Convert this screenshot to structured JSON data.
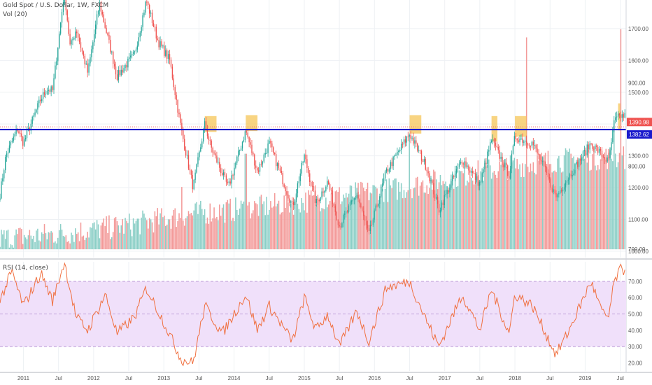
{
  "header": {
    "title": "Gold Spot / U.S. Dollar, 1W, FXCM",
    "volume_label": "Vol (20)",
    "rsi_label": "RSI (14, close)"
  },
  "colors": {
    "up": "#26a69a",
    "down": "#ef5350",
    "volume_up": "#8ccfc7",
    "volume_down": "#f39a99",
    "resistance_line": "#1a1acc",
    "price_tag": "#ef5350",
    "level_tag": "#1a1acc",
    "highlight_box": "#f5c24d",
    "rsi_line": "#f07040",
    "rsi_band": "#f0e0fa"
  },
  "chart_data": [
    {
      "type": "candlestick",
      "title": "Gold Spot / U.S. Dollar, 1W, FXCM",
      "x_ticks": [
        "2011",
        "Jul",
        "2012",
        "Jul",
        "2013",
        "Jul",
        "2014",
        "Jul",
        "2015",
        "Jul",
        "2016",
        "Jul",
        "2017",
        "Jul",
        "2018",
        "Jul",
        "2019",
        "Jul"
      ],
      "x_range": [
        "2010-09",
        "2019-08"
      ],
      "ylim": [
        980,
        1790
      ],
      "y_ticks": [
        1000,
        1100,
        1200,
        1300,
        1400,
        1500,
        1600,
        1700
      ],
      "y_tick_labels": [
        "1000.00",
        "1100.00",
        "1200.00",
        "1300.00",
        "1400.00",
        "1500.00",
        "1600.00",
        "1700.00"
      ],
      "grid": true,
      "close_path": [
        {
          "date": "2010-09",
          "close": 1180
        },
        {
          "date": "2010-10",
          "close": 1300
        },
        {
          "date": "2010-12",
          "close": 1385
        },
        {
          "date": "2011-01",
          "close": 1340
        },
        {
          "date": "2011-04",
          "close": 1480
        },
        {
          "date": "2011-05",
          "close": 1510
        },
        {
          "date": "2011-06",
          "close": 1505
        },
        {
          "date": "2011-08",
          "close": 1820
        },
        {
          "date": "2011-09",
          "close": 1640
        },
        {
          "date": "2011-10",
          "close": 1700
        },
        {
          "date": "2011-12",
          "close": 1560
        },
        {
          "date": "2012-02",
          "close": 1780
        },
        {
          "date": "2012-05",
          "close": 1550
        },
        {
          "date": "2012-08",
          "close": 1620
        },
        {
          "date": "2012-10",
          "close": 1790
        },
        {
          "date": "2012-12",
          "close": 1660
        },
        {
          "date": "2013-02",
          "close": 1600
        },
        {
          "date": "2013-04",
          "close": 1380
        },
        {
          "date": "2013-06",
          "close": 1200
        },
        {
          "date": "2013-08",
          "close": 1400
        },
        {
          "date": "2013-09",
          "close": 1330
        },
        {
          "date": "2013-12",
          "close": 1200
        },
        {
          "date": "2014-03",
          "close": 1380
        },
        {
          "date": "2014-05",
          "close": 1250
        },
        {
          "date": "2014-07",
          "close": 1340
        },
        {
          "date": "2014-11",
          "close": 1140
        },
        {
          "date": "2015-01",
          "close": 1300
        },
        {
          "date": "2015-03",
          "close": 1150
        },
        {
          "date": "2015-05",
          "close": 1220
        },
        {
          "date": "2015-07",
          "close": 1080
        },
        {
          "date": "2015-10",
          "close": 1180
        },
        {
          "date": "2015-12",
          "close": 1050
        },
        {
          "date": "2016-03",
          "close": 1250
        },
        {
          "date": "2016-07",
          "close": 1370
        },
        {
          "date": "2016-10",
          "close": 1260
        },
        {
          "date": "2016-12",
          "close": 1130
        },
        {
          "date": "2017-04",
          "close": 1290
        },
        {
          "date": "2017-07",
          "close": 1210
        },
        {
          "date": "2017-09",
          "close": 1350
        },
        {
          "date": "2017-12",
          "close": 1240
        },
        {
          "date": "2018-01",
          "close": 1360
        },
        {
          "date": "2018-04",
          "close": 1340
        },
        {
          "date": "2018-06",
          "close": 1260
        },
        {
          "date": "2018-08",
          "close": 1170
        },
        {
          "date": "2018-10",
          "close": 1230
        },
        {
          "date": "2019-02",
          "close": 1340
        },
        {
          "date": "2019-05",
          "close": 1280
        },
        {
          "date": "2019-06",
          "close": 1410
        },
        {
          "date": "2019-07",
          "close": 1425
        }
      ],
      "price_lines": [
        {
          "value": 1390.98,
          "label": "1390.98",
          "kind": "last-price"
        },
        {
          "value": 1382.62,
          "label": "1382.62",
          "kind": "resistance"
        }
      ],
      "highlight_boxes": [
        {
          "from": "2013-08",
          "to": "2013-10",
          "low": 1375,
          "high": 1425
        },
        {
          "from": "2014-03",
          "to": "2014-05",
          "low": 1378,
          "high": 1428
        },
        {
          "from": "2016-07",
          "to": "2016-09",
          "low": 1370,
          "high": 1428
        },
        {
          "from": "2017-09",
          "to": "2017-10",
          "low": 1345,
          "high": 1425
        },
        {
          "from": "2018-01",
          "to": "2018-03",
          "low": 1360,
          "high": 1425
        },
        {
          "from": "2019-06-20",
          "to": "2019-07",
          "low": 1380,
          "high": 1465
        }
      ]
    },
    {
      "type": "bar",
      "title": "Vol (20)",
      "ylim": [
        690,
        1000
      ],
      "y_ticks": [
        700,
        800,
        900
      ],
      "y_tick_labels": [
        "700.00",
        "800.00",
        "900.00"
      ],
      "baseline": 700,
      "level_path": [
        {
          "date": "2010-09",
          "value": 707
        },
        {
          "date": "2011-06",
          "value": 712
        },
        {
          "date": "2012-06",
          "value": 722
        },
        {
          "date": "2013-06",
          "value": 737
        },
        {
          "date": "2014-06",
          "value": 745
        },
        {
          "date": "2015-06",
          "value": 757
        },
        {
          "date": "2016-06",
          "value": 768
        },
        {
          "date": "2017-06",
          "value": 786
        },
        {
          "date": "2018-06",
          "value": 800
        },
        {
          "date": "2019-06",
          "value": 805
        }
      ],
      "spikes": [
        {
          "date": "2013-04",
          "value": 775
        },
        {
          "date": "2014-03",
          "value": 815
        },
        {
          "date": "2016-07",
          "value": 830
        },
        {
          "date": "2018-03",
          "value": 955
        },
        {
          "date": "2019-06",
          "value": 845
        },
        {
          "date": "2019-07",
          "value": 965
        }
      ]
    },
    {
      "type": "line",
      "title": "RSI (14, close)",
      "ylim": [
        15,
        82
      ],
      "y_ticks": [
        20,
        30,
        40,
        50,
        60,
        70
      ],
      "y_tick_labels": [
        "20.00",
        "30.00",
        "40.00",
        "50.00",
        "60.00",
        "70.00"
      ],
      "band": [
        30,
        70
      ],
      "path": [
        {
          "date": "2010-09",
          "value": 58
        },
        {
          "date": "2010-11",
          "value": 76
        },
        {
          "date": "2011-01",
          "value": 55
        },
        {
          "date": "2011-04",
          "value": 75
        },
        {
          "date": "2011-06",
          "value": 58
        },
        {
          "date": "2011-08",
          "value": 82
        },
        {
          "date": "2011-10",
          "value": 48
        },
        {
          "date": "2011-12",
          "value": 40
        },
        {
          "date": "2012-03",
          "value": 62
        },
        {
          "date": "2012-05",
          "value": 38
        },
        {
          "date": "2012-08",
          "value": 48
        },
        {
          "date": "2012-10",
          "value": 66
        },
        {
          "date": "2013-01",
          "value": 45
        },
        {
          "date": "2013-04",
          "value": 22
        },
        {
          "date": "2013-06",
          "value": 20
        },
        {
          "date": "2013-08",
          "value": 55
        },
        {
          "date": "2013-11",
          "value": 38
        },
        {
          "date": "2014-03",
          "value": 62
        },
        {
          "date": "2014-05",
          "value": 40
        },
        {
          "date": "2014-07",
          "value": 55
        },
        {
          "date": "2014-11",
          "value": 33
        },
        {
          "date": "2015-01",
          "value": 60
        },
        {
          "date": "2015-03",
          "value": 40
        },
        {
          "date": "2015-05",
          "value": 50
        },
        {
          "date": "2015-07",
          "value": 30
        },
        {
          "date": "2015-10",
          "value": 52
        },
        {
          "date": "2015-12",
          "value": 33
        },
        {
          "date": "2016-03",
          "value": 66
        },
        {
          "date": "2016-07",
          "value": 70
        },
        {
          "date": "2016-10",
          "value": 45
        },
        {
          "date": "2016-12",
          "value": 30
        },
        {
          "date": "2017-04",
          "value": 62
        },
        {
          "date": "2017-07",
          "value": 40
        },
        {
          "date": "2017-09",
          "value": 65
        },
        {
          "date": "2017-12",
          "value": 38
        },
        {
          "date": "2018-01",
          "value": 62
        },
        {
          "date": "2018-04",
          "value": 55
        },
        {
          "date": "2018-06",
          "value": 40
        },
        {
          "date": "2018-08",
          "value": 25
        },
        {
          "date": "2018-10",
          "value": 38
        },
        {
          "date": "2019-02",
          "value": 70
        },
        {
          "date": "2019-04",
          "value": 50
        },
        {
          "date": "2019-05",
          "value": 48
        },
        {
          "date": "2019-06",
          "value": 70
        },
        {
          "date": "2019-07",
          "value": 77
        }
      ]
    }
  ]
}
